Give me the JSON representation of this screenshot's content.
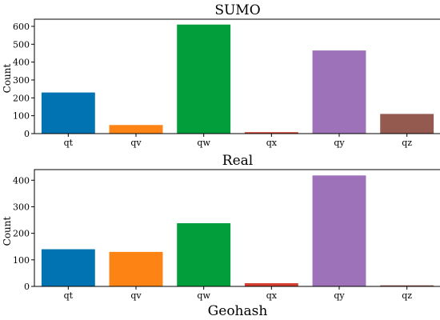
{
  "xlabel": "Geohash",
  "colors": [
    "#0173b2",
    "#fd8414",
    "#029e3b",
    "#d43d30",
    "#9e72b8",
    "#955a4f"
  ],
  "chart_data": [
    {
      "type": "bar",
      "title": "SUMO",
      "ylabel": "Count",
      "xlabel": "",
      "categories": [
        "qt",
        "qv",
        "qw",
        "qx",
        "qy",
        "qz"
      ],
      "values": [
        230,
        48,
        610,
        8,
        465,
        110
      ],
      "ylim": [
        0,
        640
      ],
      "yticks": [
        "0",
        "100",
        "200",
        "300",
        "400",
        "500",
        "600"
      ]
    },
    {
      "type": "bar",
      "title": "Real",
      "ylabel": "Count",
      "xlabel": "Geohash",
      "categories": [
        "qt",
        "qv",
        "qw",
        "qx",
        "qy",
        "qz"
      ],
      "values": [
        140,
        130,
        238,
        12,
        418,
        4
      ],
      "ylim": [
        0,
        440
      ],
      "yticks": [
        "0",
        "100",
        "200",
        "300",
        "400"
      ]
    }
  ]
}
